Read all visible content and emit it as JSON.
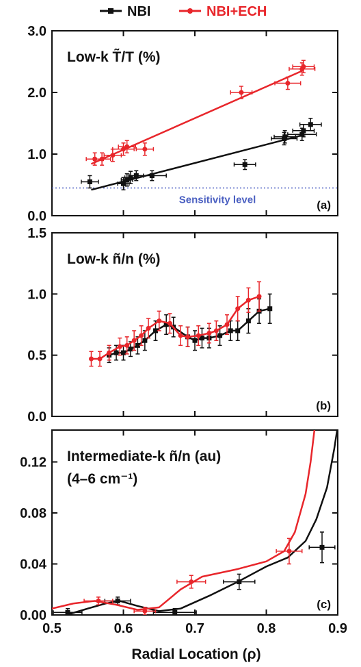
{
  "legend": {
    "items": [
      {
        "label": "NBI",
        "color": "#111111"
      },
      {
        "label": "NBI+ECH",
        "color": "#e8262b"
      }
    ]
  },
  "xlabel": "Radial Location (ρ)",
  "chart_data": [
    {
      "type": "line",
      "panel_label": "(a)",
      "title": "Low-k T̃/T (%)",
      "xlim": [
        0.5,
        0.9
      ],
      "ylim": [
        0.0,
        3.0
      ],
      "yticks": [
        "0.0",
        "1.0",
        "2.0",
        "3.0"
      ],
      "ytick_values": [
        0.0,
        1.0,
        2.0,
        3.0
      ],
      "reference_line": {
        "y": 0.45,
        "label": "Sensitivity level",
        "color": "#4a5fc1"
      },
      "series": [
        {
          "name": "NBI",
          "color": "#111111",
          "points": [
            [
              0.553,
              0.55
            ],
            [
              0.6,
              0.52
            ],
            [
              0.605,
              0.58
            ],
            [
              0.61,
              0.62
            ],
            [
              0.618,
              0.65
            ],
            [
              0.64,
              0.65
            ],
            [
              0.77,
              0.83
            ],
            [
              0.825,
              1.25
            ],
            [
              0.826,
              1.28
            ],
            [
              0.85,
              1.32
            ],
            [
              0.852,
              1.38
            ],
            [
              0.862,
              1.48
            ]
          ],
          "xerr": [
            0.012,
            0.008,
            0.008,
            0.008,
            0.01,
            0.02,
            0.015,
            0.018,
            0.015,
            0.02,
            0.015,
            0.015
          ],
          "yerr": [
            0.1,
            0.1,
            0.1,
            0.1,
            0.08,
            0.08,
            0.08,
            0.1,
            0.1,
            0.1,
            0.1,
            0.1
          ],
          "fit": [
            [
              0.555,
              0.42
            ],
            [
              0.855,
              1.32
            ]
          ]
        },
        {
          "name": "NBI+ECH",
          "color": "#e8262b",
          "points": [
            [
              0.56,
              0.92
            ],
            [
              0.57,
              0.92
            ],
            [
              0.585,
              0.98
            ],
            [
              0.6,
              1.08
            ],
            [
              0.605,
              1.12
            ],
            [
              0.63,
              1.08
            ],
            [
              0.765,
              2.0
            ],
            [
              0.83,
              2.15
            ],
            [
              0.85,
              2.38
            ],
            [
              0.852,
              2.42
            ]
          ],
          "xerr": [
            0.012,
            0.012,
            0.012,
            0.015,
            0.012,
            0.012,
            0.015,
            0.018,
            0.018,
            0.015
          ],
          "yerr": [
            0.1,
            0.1,
            0.1,
            0.1,
            0.1,
            0.1,
            0.1,
            0.1,
            0.1,
            0.1
          ],
          "fit": [
            [
              0.555,
              0.84
            ],
            [
              0.852,
              2.36
            ]
          ]
        }
      ]
    },
    {
      "type": "line",
      "panel_label": "(b)",
      "title": "Low-k ñ/n (%)",
      "xlim": [
        0.5,
        0.9
      ],
      "ylim": [
        0.0,
        1.5
      ],
      "yticks": [
        "0.0",
        "0.5",
        "1.0",
        "1.5"
      ],
      "ytick_values": [
        0.0,
        0.5,
        1.0,
        1.5
      ],
      "series": [
        {
          "name": "NBI",
          "color": "#111111",
          "points": [
            [
              0.58,
              0.5
            ],
            [
              0.59,
              0.52
            ],
            [
              0.6,
              0.52
            ],
            [
              0.61,
              0.55
            ],
            [
              0.62,
              0.58
            ],
            [
              0.63,
              0.62
            ],
            [
              0.645,
              0.7
            ],
            [
              0.66,
              0.75
            ],
            [
              0.67,
              0.73
            ],
            [
              0.69,
              0.65
            ],
            [
              0.7,
              0.62
            ],
            [
              0.71,
              0.64
            ],
            [
              0.72,
              0.64
            ],
            [
              0.735,
              0.66
            ],
            [
              0.75,
              0.7
            ],
            [
              0.76,
              0.7
            ],
            [
              0.775,
              0.78
            ],
            [
              0.79,
              0.86
            ],
            [
              0.805,
              0.88
            ]
          ],
          "yerr": [
            0.06,
            0.06,
            0.06,
            0.06,
            0.07,
            0.08,
            0.08,
            0.08,
            0.08,
            0.08,
            0.08,
            0.08,
            0.08,
            0.08,
            0.08,
            0.08,
            0.1,
            0.1,
            0.12
          ]
        },
        {
          "name": "NBI+ECH",
          "color": "#e8262b",
          "points": [
            [
              0.555,
              0.47
            ],
            [
              0.567,
              0.47
            ],
            [
              0.58,
              0.52
            ],
            [
              0.595,
              0.57
            ],
            [
              0.605,
              0.58
            ],
            [
              0.615,
              0.62
            ],
            [
              0.625,
              0.66
            ],
            [
              0.635,
              0.72
            ],
            [
              0.65,
              0.78
            ],
            [
              0.665,
              0.76
            ],
            [
              0.68,
              0.66
            ],
            [
              0.69,
              0.65
            ],
            [
              0.705,
              0.66
            ],
            [
              0.72,
              0.68
            ],
            [
              0.73,
              0.7
            ],
            [
              0.745,
              0.75
            ],
            [
              0.76,
              0.88
            ],
            [
              0.775,
              0.95
            ],
            [
              0.79,
              0.98
            ]
          ],
          "yerr": [
            0.06,
            0.06,
            0.06,
            0.07,
            0.07,
            0.08,
            0.08,
            0.08,
            0.08,
            0.08,
            0.08,
            0.08,
            0.08,
            0.08,
            0.08,
            0.08,
            0.1,
            0.1,
            0.12
          ]
        }
      ]
    },
    {
      "type": "line",
      "panel_label": "(c)",
      "title": "Intermediate-k ñ/n (au)",
      "subtitle": "(4–6 cm⁻¹)",
      "xlim": [
        0.5,
        0.9
      ],
      "ylim": [
        0.0,
        0.145
      ],
      "yticks": [
        "0.00",
        "0.04",
        "0.08",
        "0.12"
      ],
      "ytick_values": [
        0.0,
        0.04,
        0.08,
        0.12
      ],
      "xticks": [
        "0.5",
        "0.6",
        "0.7",
        "0.8",
        "0.9"
      ],
      "xtick_values": [
        0.5,
        0.6,
        0.7,
        0.8,
        0.9
      ],
      "series": [
        {
          "name": "NBI",
          "color": "#111111",
          "points": [
            [
              0.522,
              0.002
            ],
            [
              0.592,
              0.011
            ],
            [
              0.672,
              0.002
            ],
            [
              0.762,
              0.026
            ],
            [
              0.878,
              0.053
            ]
          ],
          "xerr": [
            0.02,
            0.018,
            0.03,
            0.022,
            0.018
          ],
          "yerr": [
            0.003,
            0.003,
            0.003,
            0.006,
            0.012
          ],
          "curve": [
            [
              0.52,
              0.0
            ],
            [
              0.55,
              0.005
            ],
            [
              0.575,
              0.009
            ],
            [
              0.595,
              0.011
            ],
            [
              0.62,
              0.007
            ],
            [
              0.65,
              0.003
            ],
            [
              0.68,
              0.005
            ],
            [
              0.72,
              0.015
            ],
            [
              0.76,
              0.026
            ],
            [
              0.8,
              0.038
            ],
            [
              0.83,
              0.045
            ],
            [
              0.855,
              0.058
            ],
            [
              0.87,
              0.075
            ],
            [
              0.885,
              0.1
            ],
            [
              0.895,
              0.13
            ],
            [
              0.9,
              0.148
            ]
          ]
        },
        {
          "name": "NBI+ECH",
          "color": "#e8262b",
          "points": [
            [
              0.565,
              0.011
            ],
            [
              0.63,
              0.003
            ],
            [
              0.695,
              0.026
            ],
            [
              0.832,
              0.05
            ]
          ],
          "xerr": [
            0.02,
            0.015,
            0.02,
            0.018
          ],
          "yerr": [
            0.003,
            0.003,
            0.005,
            0.01
          ],
          "curve": [
            [
              0.5,
              0.005
            ],
            [
              0.53,
              0.009
            ],
            [
              0.56,
              0.011
            ],
            [
              0.59,
              0.008
            ],
            [
              0.62,
              0.004
            ],
            [
              0.65,
              0.006
            ],
            [
              0.68,
              0.02
            ],
            [
              0.71,
              0.03
            ],
            [
              0.76,
              0.036
            ],
            [
              0.8,
              0.042
            ],
            [
              0.825,
              0.05
            ],
            [
              0.84,
              0.065
            ],
            [
              0.855,
              0.095
            ],
            [
              0.862,
              0.12
            ],
            [
              0.868,
              0.148
            ]
          ]
        }
      ]
    }
  ]
}
